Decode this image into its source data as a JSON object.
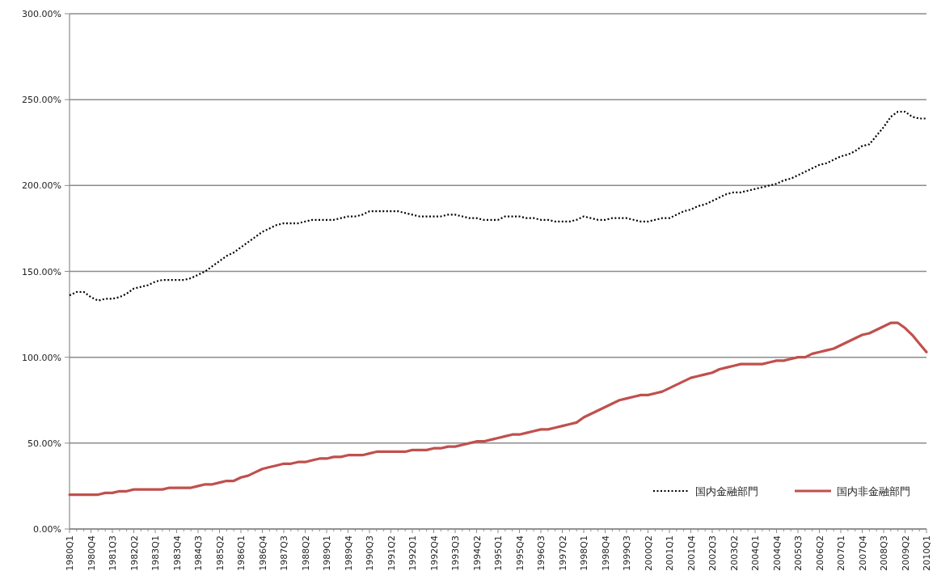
{
  "chart_data": {
    "type": "line",
    "categories": [
      "1980Q1",
      null,
      null,
      "1980Q4",
      null,
      null,
      "1981Q3",
      null,
      null,
      "1982Q2",
      null,
      null,
      "1983Q1",
      null,
      null,
      "1983Q4",
      null,
      null,
      "1984Q3",
      null,
      null,
      "1985Q2",
      null,
      null,
      "1986Q1",
      null,
      null,
      "1986Q4",
      null,
      null,
      "1987Q3",
      null,
      null,
      "1988Q2",
      null,
      null,
      "1989Q1",
      null,
      null,
      "1989Q4",
      null,
      null,
      "1990Q3",
      null,
      null,
      "1991Q2",
      null,
      null,
      "1992Q1",
      null,
      null,
      "1992Q4",
      null,
      null,
      "1993Q3",
      null,
      null,
      "1994Q2",
      null,
      null,
      "1995Q1",
      null,
      null,
      "1995Q4",
      null,
      null,
      "1996Q3",
      null,
      null,
      "1997Q2",
      null,
      null,
      "1998Q1",
      null,
      null,
      "1998Q4",
      null,
      null,
      "1999Q3",
      null,
      null,
      "2000Q2",
      null,
      null,
      "2001Q1",
      null,
      null,
      "2001Q4",
      null,
      null,
      "2002Q3",
      null,
      null,
      "2003Q2",
      null,
      null,
      "2004Q1",
      null,
      null,
      "2004Q4",
      null,
      null,
      "2005Q3",
      null,
      null,
      "2006Q2",
      null,
      null,
      "2007Q1",
      null,
      null,
      "2007Q4",
      null,
      null,
      "2008Q3",
      null,
      null,
      "2009Q2",
      null,
      null,
      "2010Q1"
    ],
    "series": [
      {
        "name": "国内金融部門",
        "color": "#000000",
        "line_style": "dotted",
        "values": [
          136,
          138,
          138,
          135,
          133,
          134,
          134,
          135,
          137,
          140,
          141,
          142,
          144,
          145,
          145,
          145,
          145,
          146,
          148,
          150,
          153,
          156,
          159,
          161,
          164,
          167,
          170,
          173,
          175,
          177,
          178,
          178,
          178,
          179,
          180,
          180,
          180,
          180,
          181,
          182,
          182,
          183,
          185,
          185,
          185,
          185,
          185,
          184,
          183,
          182,
          182,
          182,
          182,
          183,
          183,
          182,
          181,
          181,
          180,
          180,
          180,
          182,
          182,
          182,
          181,
          181,
          180,
          180,
          179,
          179,
          179,
          180,
          182,
          181,
          180,
          180,
          181,
          181,
          181,
          180,
          179,
          179,
          180,
          181,
          181,
          183,
          185,
          186,
          188,
          189,
          191,
          193,
          195,
          196,
          196,
          197,
          198,
          199,
          200,
          201,
          203,
          204,
          206,
          208,
          210,
          212,
          213,
          215,
          217,
          218,
          220,
          223,
          224,
          229,
          234,
          240,
          243,
          243,
          240,
          239,
          239
        ]
      },
      {
        "name": "国内非金融部門",
        "color": "#c0504d",
        "line_style": "solid",
        "values": [
          20,
          20,
          20,
          20,
          20,
          21,
          21,
          22,
          22,
          23,
          23,
          23,
          23,
          23,
          24,
          24,
          24,
          24,
          25,
          26,
          26,
          27,
          28,
          28,
          30,
          31,
          33,
          35,
          36,
          37,
          38,
          38,
          39,
          39,
          40,
          41,
          41,
          42,
          42,
          43,
          43,
          43,
          44,
          45,
          45,
          45,
          45,
          45,
          46,
          46,
          46,
          47,
          47,
          48,
          48,
          49,
          50,
          51,
          51,
          52,
          53,
          54,
          55,
          55,
          56,
          57,
          58,
          58,
          59,
          60,
          61,
          62,
          65,
          67,
          69,
          71,
          73,
          75,
          76,
          77,
          78,
          78,
          79,
          80,
          82,
          84,
          86,
          88,
          89,
          90,
          91,
          93,
          94,
          95,
          96,
          96,
          96,
          96,
          97,
          98,
          98,
          99,
          100,
          100,
          102,
          103,
          104,
          105,
          107,
          109,
          111,
          113,
          114,
          116,
          118,
          120,
          120,
          117,
          113,
          108,
          103
        ]
      }
    ],
    "ylim": [
      0,
      300
    ],
    "yticks": [
      {
        "value": 0,
        "label": "0.00%"
      },
      {
        "value": 50,
        "label": "50.00%"
      },
      {
        "value": 100,
        "label": "100.00%"
      },
      {
        "value": 150,
        "label": "150.00%"
      },
      {
        "value": 200,
        "label": "200.00%"
      },
      {
        "value": 250,
        "label": "250.00%"
      },
      {
        "value": 300,
        "label": "300.00%"
      }
    ],
    "grid": "y",
    "legend": "bottom right",
    "marker": "none"
  }
}
